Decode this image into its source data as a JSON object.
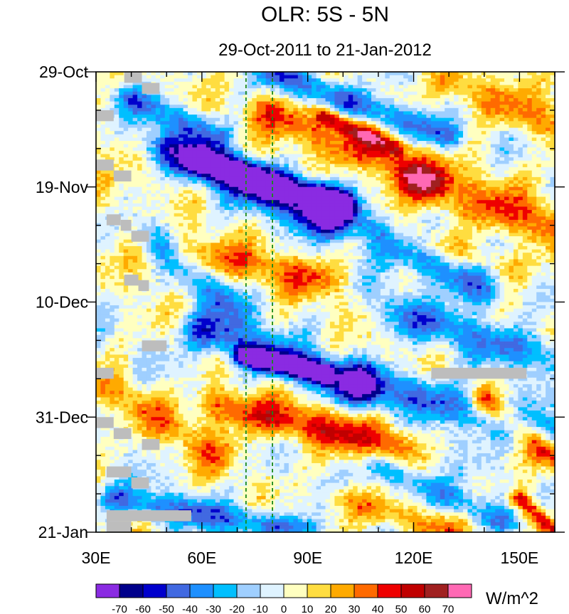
{
  "chart_data": {
    "type": "heatmap",
    "title": "OLR: 5S - 5N",
    "subtitle": "29-Oct-2011 to 21-Jan-2012",
    "x_ticks": [
      "30E",
      "60E",
      "90E",
      "120E",
      "150E"
    ],
    "x_tick_values": [
      30,
      60,
      90,
      120,
      150
    ],
    "xlim": [
      30,
      160
    ],
    "y_ticks": [
      "29-Oct",
      "19-Nov",
      "10-Dec",
      "31-Dec",
      "21-Jan"
    ],
    "y_tick_days": [
      0,
      21,
      42,
      63,
      84
    ],
    "ylim_days": [
      0,
      84
    ],
    "reference_lines": [
      {
        "lon": 72.5,
        "style": "dashed",
        "color": "#1a8a1a"
      },
      {
        "lon": 80,
        "style": "dashed",
        "color": "#1a8a1a"
      }
    ],
    "colorbar": {
      "unit": "W/m^2",
      "levels": [
        "-70",
        "-60",
        "-50",
        "-40",
        "-30",
        "-20",
        "-10",
        "0",
        "10",
        "20",
        "30",
        "40",
        "50",
        "60",
        "70"
      ],
      "colors": [
        "#8a2be2",
        "#00008b",
        "#0000cd",
        "#4169e1",
        "#1e90ff",
        "#00bfff",
        "#9fcfff",
        "#dff3ff",
        "#ffffc0",
        "#ffdd40",
        "#ffaa00",
        "#ff6a00",
        "#ee0000",
        "#c00000",
        "#a02020",
        "#ff69b4"
      ]
    },
    "features": [
      {
        "lon0": 50,
        "day0": 14,
        "lon1": 95,
        "day1": 27,
        "width": 4,
        "value": -55
      },
      {
        "lon0": 60,
        "day0": 16,
        "lon1": 100,
        "day1": 24,
        "width": 3,
        "value": -70
      },
      {
        "lon0": 95,
        "day0": 24,
        "lon1": 140,
        "day1": 40,
        "width": 4,
        "value": -45
      },
      {
        "lon0": 80,
        "day0": 0,
        "lon1": 130,
        "day1": 12,
        "width": 3,
        "value": -45
      },
      {
        "lon0": 60,
        "day0": 47,
        "lon1": 105,
        "day1": 58,
        "width": 4,
        "value": -50
      },
      {
        "lon0": 72,
        "day0": 52,
        "lon1": 95,
        "day1": 55,
        "width": 2,
        "value": -70
      },
      {
        "lon0": 105,
        "day0": 56,
        "lon1": 158,
        "day1": 66,
        "width": 4,
        "value": -45
      },
      {
        "lon0": 35,
        "day0": 78,
        "lon1": 90,
        "day1": 84,
        "width": 3,
        "value": -40
      },
      {
        "lon0": 110,
        "day0": 72,
        "lon1": 145,
        "day1": 82,
        "width": 3,
        "value": -35
      },
      {
        "lon0": 45,
        "day0": 30,
        "lon1": 70,
        "day1": 44,
        "width": 4,
        "value": -30
      },
      {
        "lon0": 115,
        "day0": 44,
        "lon1": 158,
        "day1": 52,
        "width": 4,
        "value": -35
      },
      {
        "lon0": 40,
        "day0": 5,
        "lon1": 65,
        "day1": 12,
        "width": 3,
        "value": -35
      },
      {
        "lon0": 78,
        "day0": 7,
        "lon1": 125,
        "day1": 20,
        "width": 4,
        "value": 40
      },
      {
        "lon0": 95,
        "day0": 8,
        "lon1": 115,
        "day1": 14,
        "width": 2,
        "value": 50
      },
      {
        "lon0": 55,
        "day0": 33,
        "lon1": 95,
        "day1": 38,
        "width": 4,
        "value": 30
      },
      {
        "lon0": 65,
        "day0": 61,
        "lon1": 115,
        "day1": 68,
        "width": 4,
        "value": 45
      },
      {
        "lon0": 35,
        "day0": 58,
        "lon1": 65,
        "day1": 70,
        "width": 4,
        "value": 25
      },
      {
        "lon0": 120,
        "day0": 20,
        "lon1": 158,
        "day1": 28,
        "width": 5,
        "value": 35
      },
      {
        "lon0": 130,
        "day0": 2,
        "lon1": 160,
        "day1": 10,
        "width": 4,
        "value": 30
      },
      {
        "lon0": 140,
        "day0": 60,
        "lon1": 160,
        "day1": 70,
        "width": 3,
        "value": 50
      },
      {
        "lon0": 150,
        "day0": 78,
        "lon1": 160,
        "day1": 84,
        "width": 2,
        "value": 55
      },
      {
        "lon0": 100,
        "day0": 78,
        "lon1": 130,
        "day1": 84,
        "width": 3,
        "value": 30
      },
      {
        "lon0": 30,
        "day0": 20,
        "lon1": 45,
        "day1": 36,
        "width": 4,
        "value": 15
      },
      {
        "lon0": 115,
        "day0": 30,
        "lon1": 150,
        "day1": 36,
        "width": 3,
        "value": 20
      }
    ],
    "missing": [
      {
        "lon0": 38,
        "lon1": 43,
        "day0": 0,
        "day1": 2
      },
      {
        "lon0": 43,
        "lon1": 48,
        "day0": 2,
        "day1": 4
      },
      {
        "lon0": 30,
        "lon1": 35,
        "day0": 7,
        "day1": 9
      },
      {
        "lon0": 30,
        "lon1": 35,
        "day0": 16,
        "day1": 18
      },
      {
        "lon0": 35,
        "lon1": 40,
        "day0": 18,
        "day1": 20
      },
      {
        "lon0": 33,
        "lon1": 37,
        "day0": 26,
        "day1": 28
      },
      {
        "lon0": 37,
        "lon1": 40,
        "day0": 27,
        "day1": 29
      },
      {
        "lon0": 40,
        "lon1": 45,
        "day0": 29,
        "day1": 31
      },
      {
        "lon0": 38,
        "lon1": 42,
        "day0": 37,
        "day1": 39
      },
      {
        "lon0": 42,
        "lon1": 45,
        "day0": 38,
        "day1": 40
      },
      {
        "lon0": 43,
        "lon1": 50,
        "day0": 49,
        "day1": 51
      },
      {
        "lon0": 30,
        "lon1": 35,
        "day0": 54,
        "day1": 56
      },
      {
        "lon0": 30,
        "lon1": 35,
        "day0": 63,
        "day1": 65
      },
      {
        "lon0": 35,
        "lon1": 40,
        "day0": 65,
        "day1": 67
      },
      {
        "lon0": 43,
        "lon1": 48,
        "day0": 67,
        "day1": 69
      },
      {
        "lon0": 33,
        "lon1": 40,
        "day0": 72,
        "day1": 74
      },
      {
        "lon0": 40,
        "lon1": 45,
        "day0": 74,
        "day1": 76
      },
      {
        "lon0": 33,
        "lon1": 57,
        "day0": 80,
        "day1": 82
      },
      {
        "lon0": 33,
        "lon1": 40,
        "day0": 82,
        "day1": 84
      },
      {
        "lon0": 125,
        "lon1": 152,
        "day0": 54,
        "day1": 56
      }
    ]
  }
}
